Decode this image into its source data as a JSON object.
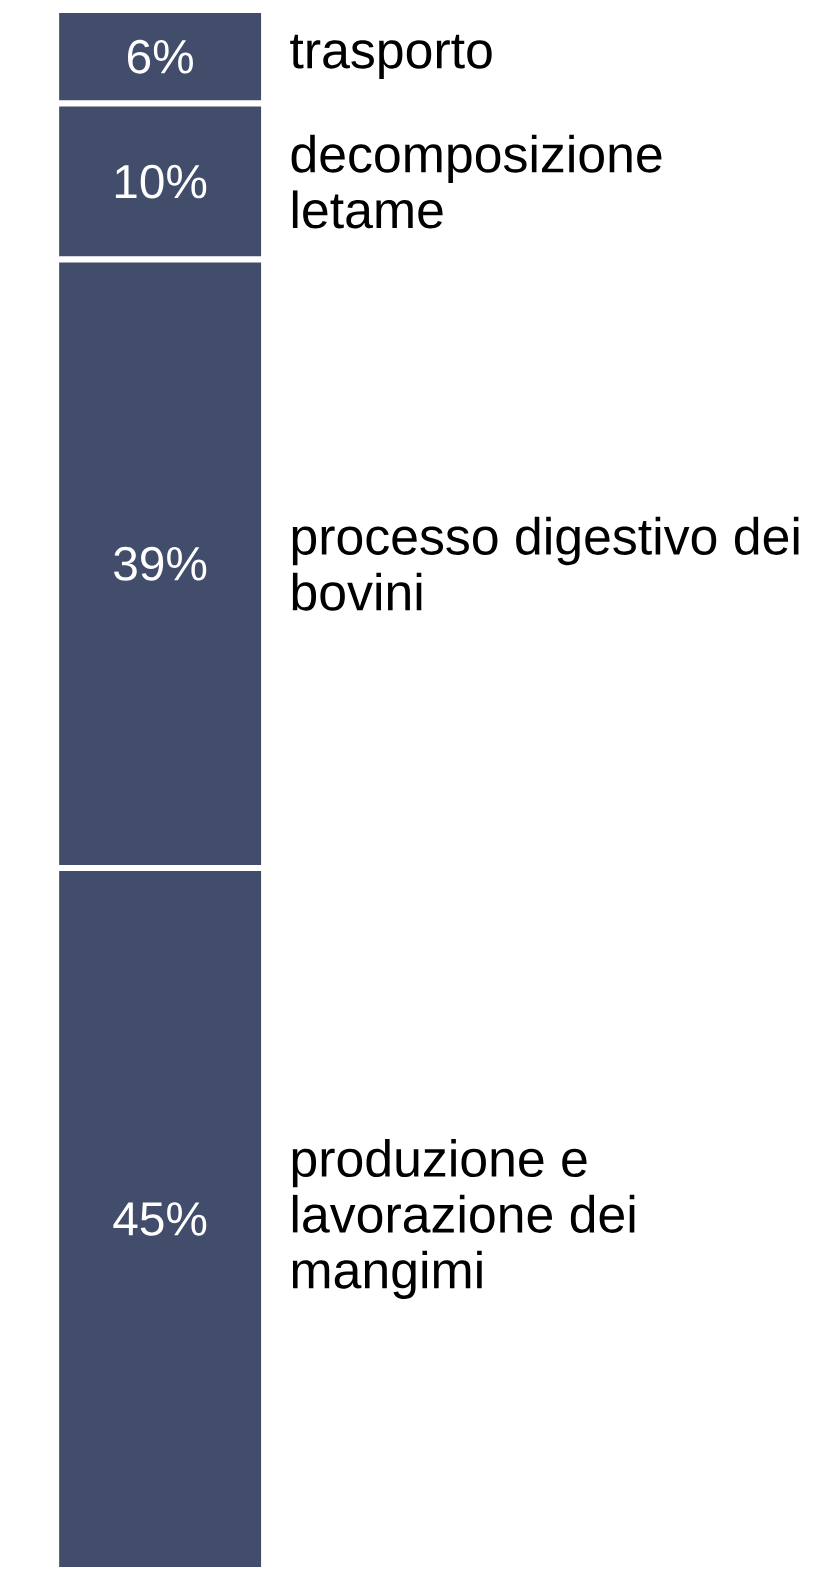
{
  "chart_data": {
    "type": "bar",
    "stacked": true,
    "categories": [
      null
    ],
    "series": [
      {
        "name": "produzione e lavorazione dei mangimi",
        "color": "#424c6b",
        "values": [
          45
        ],
        "value_labels": [
          "45%"
        ]
      },
      {
        "name": "processo digestivo dei bovini",
        "color": "#424c6b",
        "values": [
          39
        ],
        "value_labels": [
          "39%"
        ]
      },
      {
        "name": "decomposizione letame",
        "color": "#424c6b",
        "values": [
          10
        ],
        "value_labels": [
          "10%"
        ]
      },
      {
        "name": "trasporto",
        "color": "#424c6b",
        "values": [
          6
        ],
        "value_labels": [
          "6%"
        ]
      }
    ]
  }
}
